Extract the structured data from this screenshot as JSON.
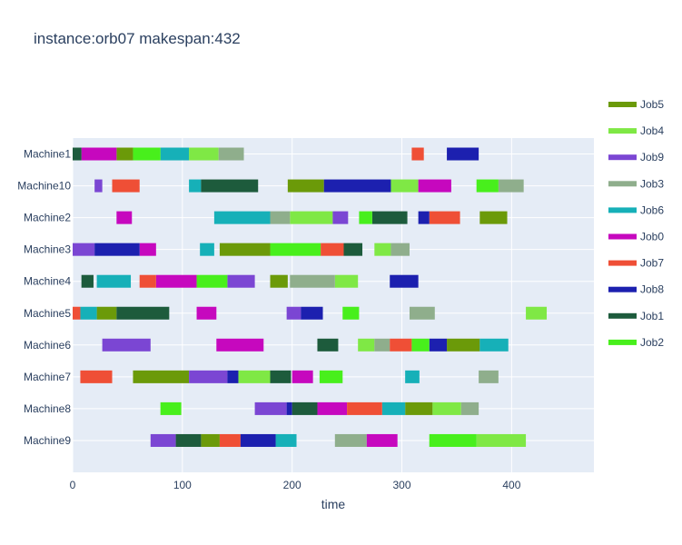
{
  "chart_data": {
    "type": "gantt",
    "title": "instance:orb07 makespan:432",
    "xlabel": "time",
    "ylabel": "",
    "xlim": [
      0,
      475
    ],
    "xticks": [
      0,
      100,
      200,
      300,
      400
    ],
    "grid": true,
    "legend_position": "right",
    "categories": [
      "Machine1",
      "Machine10",
      "Machine2",
      "Machine3",
      "Machine4",
      "Machine5",
      "Machine6",
      "Machine7",
      "Machine8",
      "Machine9"
    ],
    "series": [
      {
        "name": "Job5",
        "color": "#6b9a09",
        "tasks": [
          {
            "machine": "Machine1",
            "start": 40,
            "end": 55
          },
          {
            "machine": "Machine10",
            "start": 196,
            "end": 229
          },
          {
            "machine": "Machine2",
            "start": 371,
            "end": 396
          },
          {
            "machine": "Machine3",
            "start": 134,
            "end": 180
          },
          {
            "machine": "Machine4",
            "start": 180,
            "end": 196
          },
          {
            "machine": "Machine5",
            "start": 22,
            "end": 40
          },
          {
            "machine": "Machine6",
            "start": 341,
            "end": 371
          },
          {
            "machine": "Machine7",
            "start": 55,
            "end": 106
          },
          {
            "machine": "Machine8",
            "start": 303,
            "end": 328
          },
          {
            "machine": "Machine9",
            "start": 117,
            "end": 134
          }
        ]
      },
      {
        "name": "Job4",
        "color": "#7fe845",
        "tasks": [
          {
            "machine": "Machine1",
            "start": 106,
            "end": 133
          },
          {
            "machine": "Machine10",
            "start": 290,
            "end": 315
          },
          {
            "machine": "Machine2",
            "start": 198,
            "end": 237
          },
          {
            "machine": "Machine3",
            "start": 275,
            "end": 290
          },
          {
            "machine": "Machine4",
            "start": 239,
            "end": 260
          },
          {
            "machine": "Machine5",
            "start": 413,
            "end": 432
          },
          {
            "machine": "Machine6",
            "start": 260,
            "end": 275
          },
          {
            "machine": "Machine7",
            "start": 151,
            "end": 180
          },
          {
            "machine": "Machine8",
            "start": 328,
            "end": 354
          },
          {
            "machine": "Machine9",
            "start": 368,
            "end": 413
          }
        ]
      },
      {
        "name": "Job9",
        "color": "#7b46d3",
        "tasks": [
          {
            "machine": "Machine10",
            "start": 20,
            "end": 27
          },
          {
            "machine": "Machine2",
            "start": 237,
            "end": 251
          },
          {
            "machine": "Machine3",
            "start": 0,
            "end": 20
          },
          {
            "machine": "Machine4",
            "start": 141,
            "end": 166
          },
          {
            "machine": "Machine5",
            "start": 195,
            "end": 208
          },
          {
            "machine": "Machine6",
            "start": 27,
            "end": 71
          },
          {
            "machine": "Machine7",
            "start": 106,
            "end": 141
          },
          {
            "machine": "Machine8",
            "start": 166,
            "end": 195
          },
          {
            "machine": "Machine9",
            "start": 71,
            "end": 94
          }
        ]
      },
      {
        "name": "Job3",
        "color": "#8fae8c",
        "tasks": [
          {
            "machine": "Machine1",
            "start": 133,
            "end": 156
          },
          {
            "machine": "Machine10",
            "start": 388,
            "end": 411
          },
          {
            "machine": "Machine2",
            "start": 180,
            "end": 198
          },
          {
            "machine": "Machine3",
            "start": 290,
            "end": 307
          },
          {
            "machine": "Machine4",
            "start": 198,
            "end": 239
          },
          {
            "machine": "Machine5",
            "start": 307,
            "end": 330
          },
          {
            "machine": "Machine6",
            "start": 275,
            "end": 289
          },
          {
            "machine": "Machine7",
            "start": 370,
            "end": 388
          },
          {
            "machine": "Machine8",
            "start": 354,
            "end": 370
          },
          {
            "machine": "Machine9",
            "start": 239,
            "end": 268
          }
        ]
      },
      {
        "name": "Job6",
        "color": "#16b0b8",
        "tasks": [
          {
            "machine": "Machine1",
            "start": 80,
            "end": 106
          },
          {
            "machine": "Machine10",
            "start": 106,
            "end": 117
          },
          {
            "machine": "Machine2",
            "start": 129,
            "end": 180
          },
          {
            "machine": "Machine3",
            "start": 116,
            "end": 129
          },
          {
            "machine": "Machine4",
            "start": 22,
            "end": 53
          },
          {
            "machine": "Machine5",
            "start": 7,
            "end": 22
          },
          {
            "machine": "Machine6",
            "start": 371,
            "end": 397
          },
          {
            "machine": "Machine7",
            "start": 303,
            "end": 316
          },
          {
            "machine": "Machine8",
            "start": 282,
            "end": 303
          },
          {
            "machine": "Machine9",
            "start": 185,
            "end": 204
          }
        ]
      },
      {
        "name": "Job0",
        "color": "#c608be",
        "tasks": [
          {
            "machine": "Machine1",
            "start": 8,
            "end": 40
          },
          {
            "machine": "Machine10",
            "start": 315,
            "end": 345
          },
          {
            "machine": "Machine2",
            "start": 40,
            "end": 54
          },
          {
            "machine": "Machine3",
            "start": 61,
            "end": 76
          },
          {
            "machine": "Machine4",
            "start": 76,
            "end": 113
          },
          {
            "machine": "Machine5",
            "start": 113,
            "end": 131
          },
          {
            "machine": "Machine6",
            "start": 131,
            "end": 174
          },
          {
            "machine": "Machine7",
            "start": 200,
            "end": 219
          },
          {
            "machine": "Machine8",
            "start": 223,
            "end": 250
          },
          {
            "machine": "Machine9",
            "start": 268,
            "end": 296
          }
        ]
      },
      {
        "name": "Job7",
        "color": "#ef4f36",
        "tasks": [
          {
            "machine": "Machine1",
            "start": 309,
            "end": 320
          },
          {
            "machine": "Machine10",
            "start": 36,
            "end": 61
          },
          {
            "machine": "Machine2",
            "start": 325,
            "end": 353
          },
          {
            "machine": "Machine3",
            "start": 226,
            "end": 247
          },
          {
            "machine": "Machine4",
            "start": 61,
            "end": 76
          },
          {
            "machine": "Machine5",
            "start": 0,
            "end": 7
          },
          {
            "machine": "Machine6",
            "start": 289,
            "end": 309
          },
          {
            "machine": "Machine7",
            "start": 7,
            "end": 36
          },
          {
            "machine": "Machine8",
            "start": 250,
            "end": 282
          },
          {
            "machine": "Machine9",
            "start": 134,
            "end": 153
          }
        ]
      },
      {
        "name": "Job8",
        "color": "#1c20af",
        "tasks": [
          {
            "machine": "Machine1",
            "start": 341,
            "end": 370
          },
          {
            "machine": "Machine10",
            "start": 229,
            "end": 290
          },
          {
            "machine": "Machine2",
            "start": 315,
            "end": 325
          },
          {
            "machine": "Machine3",
            "start": 20,
            "end": 61
          },
          {
            "machine": "Machine4",
            "start": 289,
            "end": 315
          },
          {
            "machine": "Machine5",
            "start": 208,
            "end": 228
          },
          {
            "machine": "Machine6",
            "start": 325,
            "end": 341
          },
          {
            "machine": "Machine7",
            "start": 141,
            "end": 151
          },
          {
            "machine": "Machine8",
            "start": 195,
            "end": 200
          },
          {
            "machine": "Machine9",
            "start": 153,
            "end": 185
          }
        ]
      },
      {
        "name": "Job1",
        "color": "#1d5b3c",
        "tasks": [
          {
            "machine": "Machine1",
            "start": 0,
            "end": 8
          },
          {
            "machine": "Machine10",
            "start": 117,
            "end": 169
          },
          {
            "machine": "Machine2",
            "start": 273,
            "end": 305
          },
          {
            "machine": "Machine3",
            "start": 247,
            "end": 264
          },
          {
            "machine": "Machine4",
            "start": 8,
            "end": 19
          },
          {
            "machine": "Machine5",
            "start": 40,
            "end": 88
          },
          {
            "machine": "Machine6",
            "start": 223,
            "end": 242
          },
          {
            "machine": "Machine7",
            "start": 180,
            "end": 199
          },
          {
            "machine": "Machine8",
            "start": 200,
            "end": 223
          },
          {
            "machine": "Machine9",
            "start": 94,
            "end": 117
          }
        ]
      },
      {
        "name": "Job2",
        "color": "#48ef1c",
        "tasks": [
          {
            "machine": "Machine1",
            "start": 55,
            "end": 80
          },
          {
            "machine": "Machine10",
            "start": 368,
            "end": 388
          },
          {
            "machine": "Machine2",
            "start": 261,
            "end": 273
          },
          {
            "machine": "Machine3",
            "start": 180,
            "end": 226
          },
          {
            "machine": "Machine4",
            "start": 113,
            "end": 141
          },
          {
            "machine": "Machine5",
            "start": 246,
            "end": 261
          },
          {
            "machine": "Machine6",
            "start": 309,
            "end": 325
          },
          {
            "machine": "Machine7",
            "start": 225,
            "end": 246
          },
          {
            "machine": "Machine8",
            "start": 80,
            "end": 99
          },
          {
            "machine": "Machine9",
            "start": 325,
            "end": 368
          }
        ]
      }
    ]
  }
}
